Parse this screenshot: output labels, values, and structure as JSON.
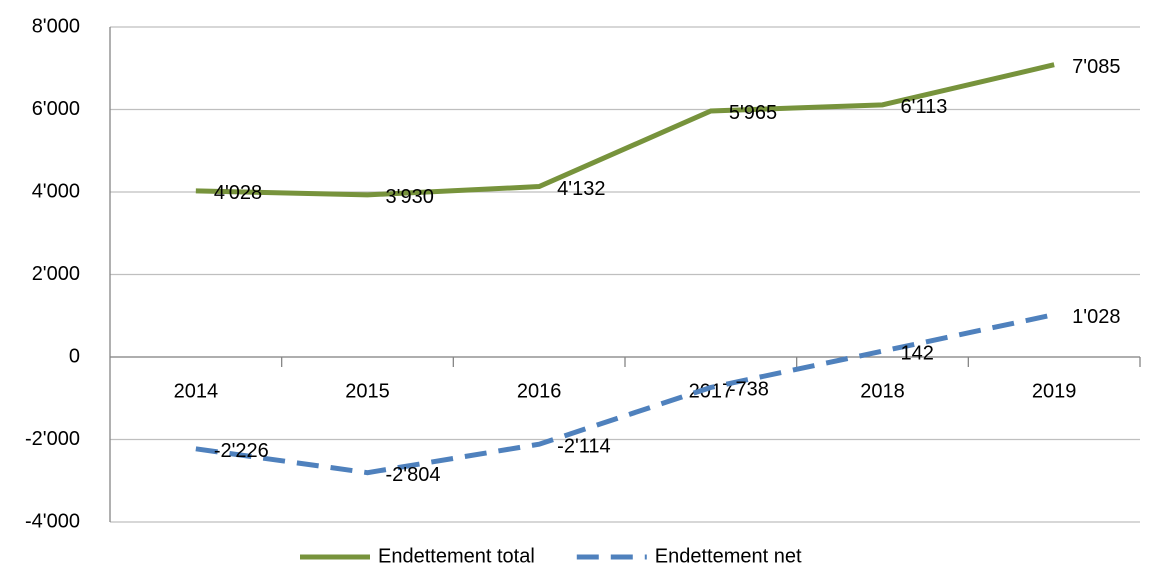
{
  "chart_data": {
    "type": "line",
    "categories": [
      "2014",
      "2015",
      "2016",
      "2017",
      "2018",
      "2019"
    ],
    "series": [
      {
        "name": "Endettement total",
        "color": "#77933c",
        "line_style": "solid",
        "values": [
          4028,
          3930,
          4132,
          5965,
          6113,
          7085
        ],
        "value_labels": [
          "4'028",
          "3'930",
          "4'132",
          "5'965",
          "6'113",
          "7'085"
        ]
      },
      {
        "name": "Endettement net",
        "color": "#4f81bd",
        "line_style": "dashed",
        "values": [
          -2226,
          -2804,
          -2114,
          -738,
          142,
          1028
        ],
        "value_labels": [
          "-2'226",
          "-2'804",
          "-2'114",
          "-738",
          "142",
          "1'028"
        ]
      }
    ],
    "ylim": [
      -4000,
      8000
    ],
    "yticks": [
      {
        "value": -4000,
        "label": "-4'000"
      },
      {
        "value": -2000,
        "label": "-2'000"
      },
      0,
      {
        "value": 2000,
        "label": "2'000"
      },
      {
        "value": 4000,
        "label": "4'000"
      },
      {
        "value": 6000,
        "label": "6'000"
      },
      {
        "value": 8000,
        "label": "8'000"
      }
    ],
    "grid": true,
    "legend": "bottom"
  }
}
